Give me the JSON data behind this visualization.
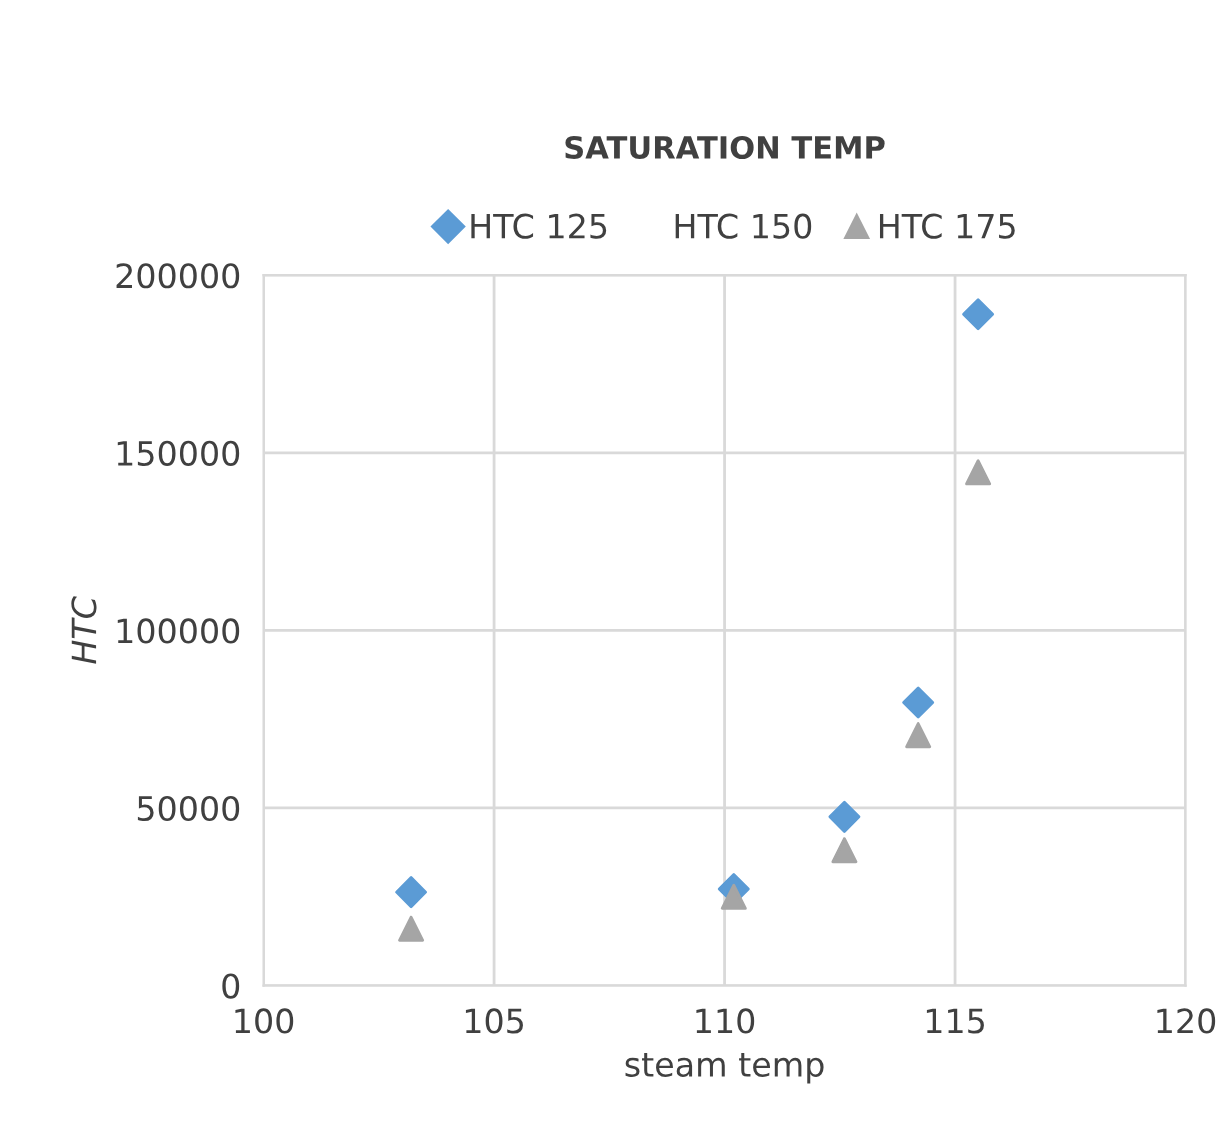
{
  "chart_data": {
    "type": "scatter",
    "title": "SATURATION TEMP",
    "xlabel": "steam temp",
    "ylabel": "HTC",
    "x": [
      103.2,
      110.2,
      112.6,
      114.2,
      115.5
    ],
    "series": [
      {
        "name": "HTC 125",
        "color": "#5b9bd5",
        "marker": "diamond",
        "values": [
          26300,
          27200,
          47500,
          79700,
          189000
        ]
      },
      {
        "name": "HTC 150",
        "marker": "none",
        "values": [
          null,
          null,
          null,
          null,
          null
        ]
      },
      {
        "name": "HTC 175",
        "color": "#a5a5a5",
        "marker": "triangle",
        "values": [
          16000,
          25000,
          38100,
          70500,
          144500
        ]
      }
    ],
    "xlim": [
      100,
      120
    ],
    "xticks": [
      100,
      105,
      110,
      115,
      120
    ],
    "ylim": [
      0,
      200000
    ],
    "yticks": [
      0,
      50000,
      100000,
      150000,
      200000
    ],
    "grid": true,
    "legend": "top"
  }
}
